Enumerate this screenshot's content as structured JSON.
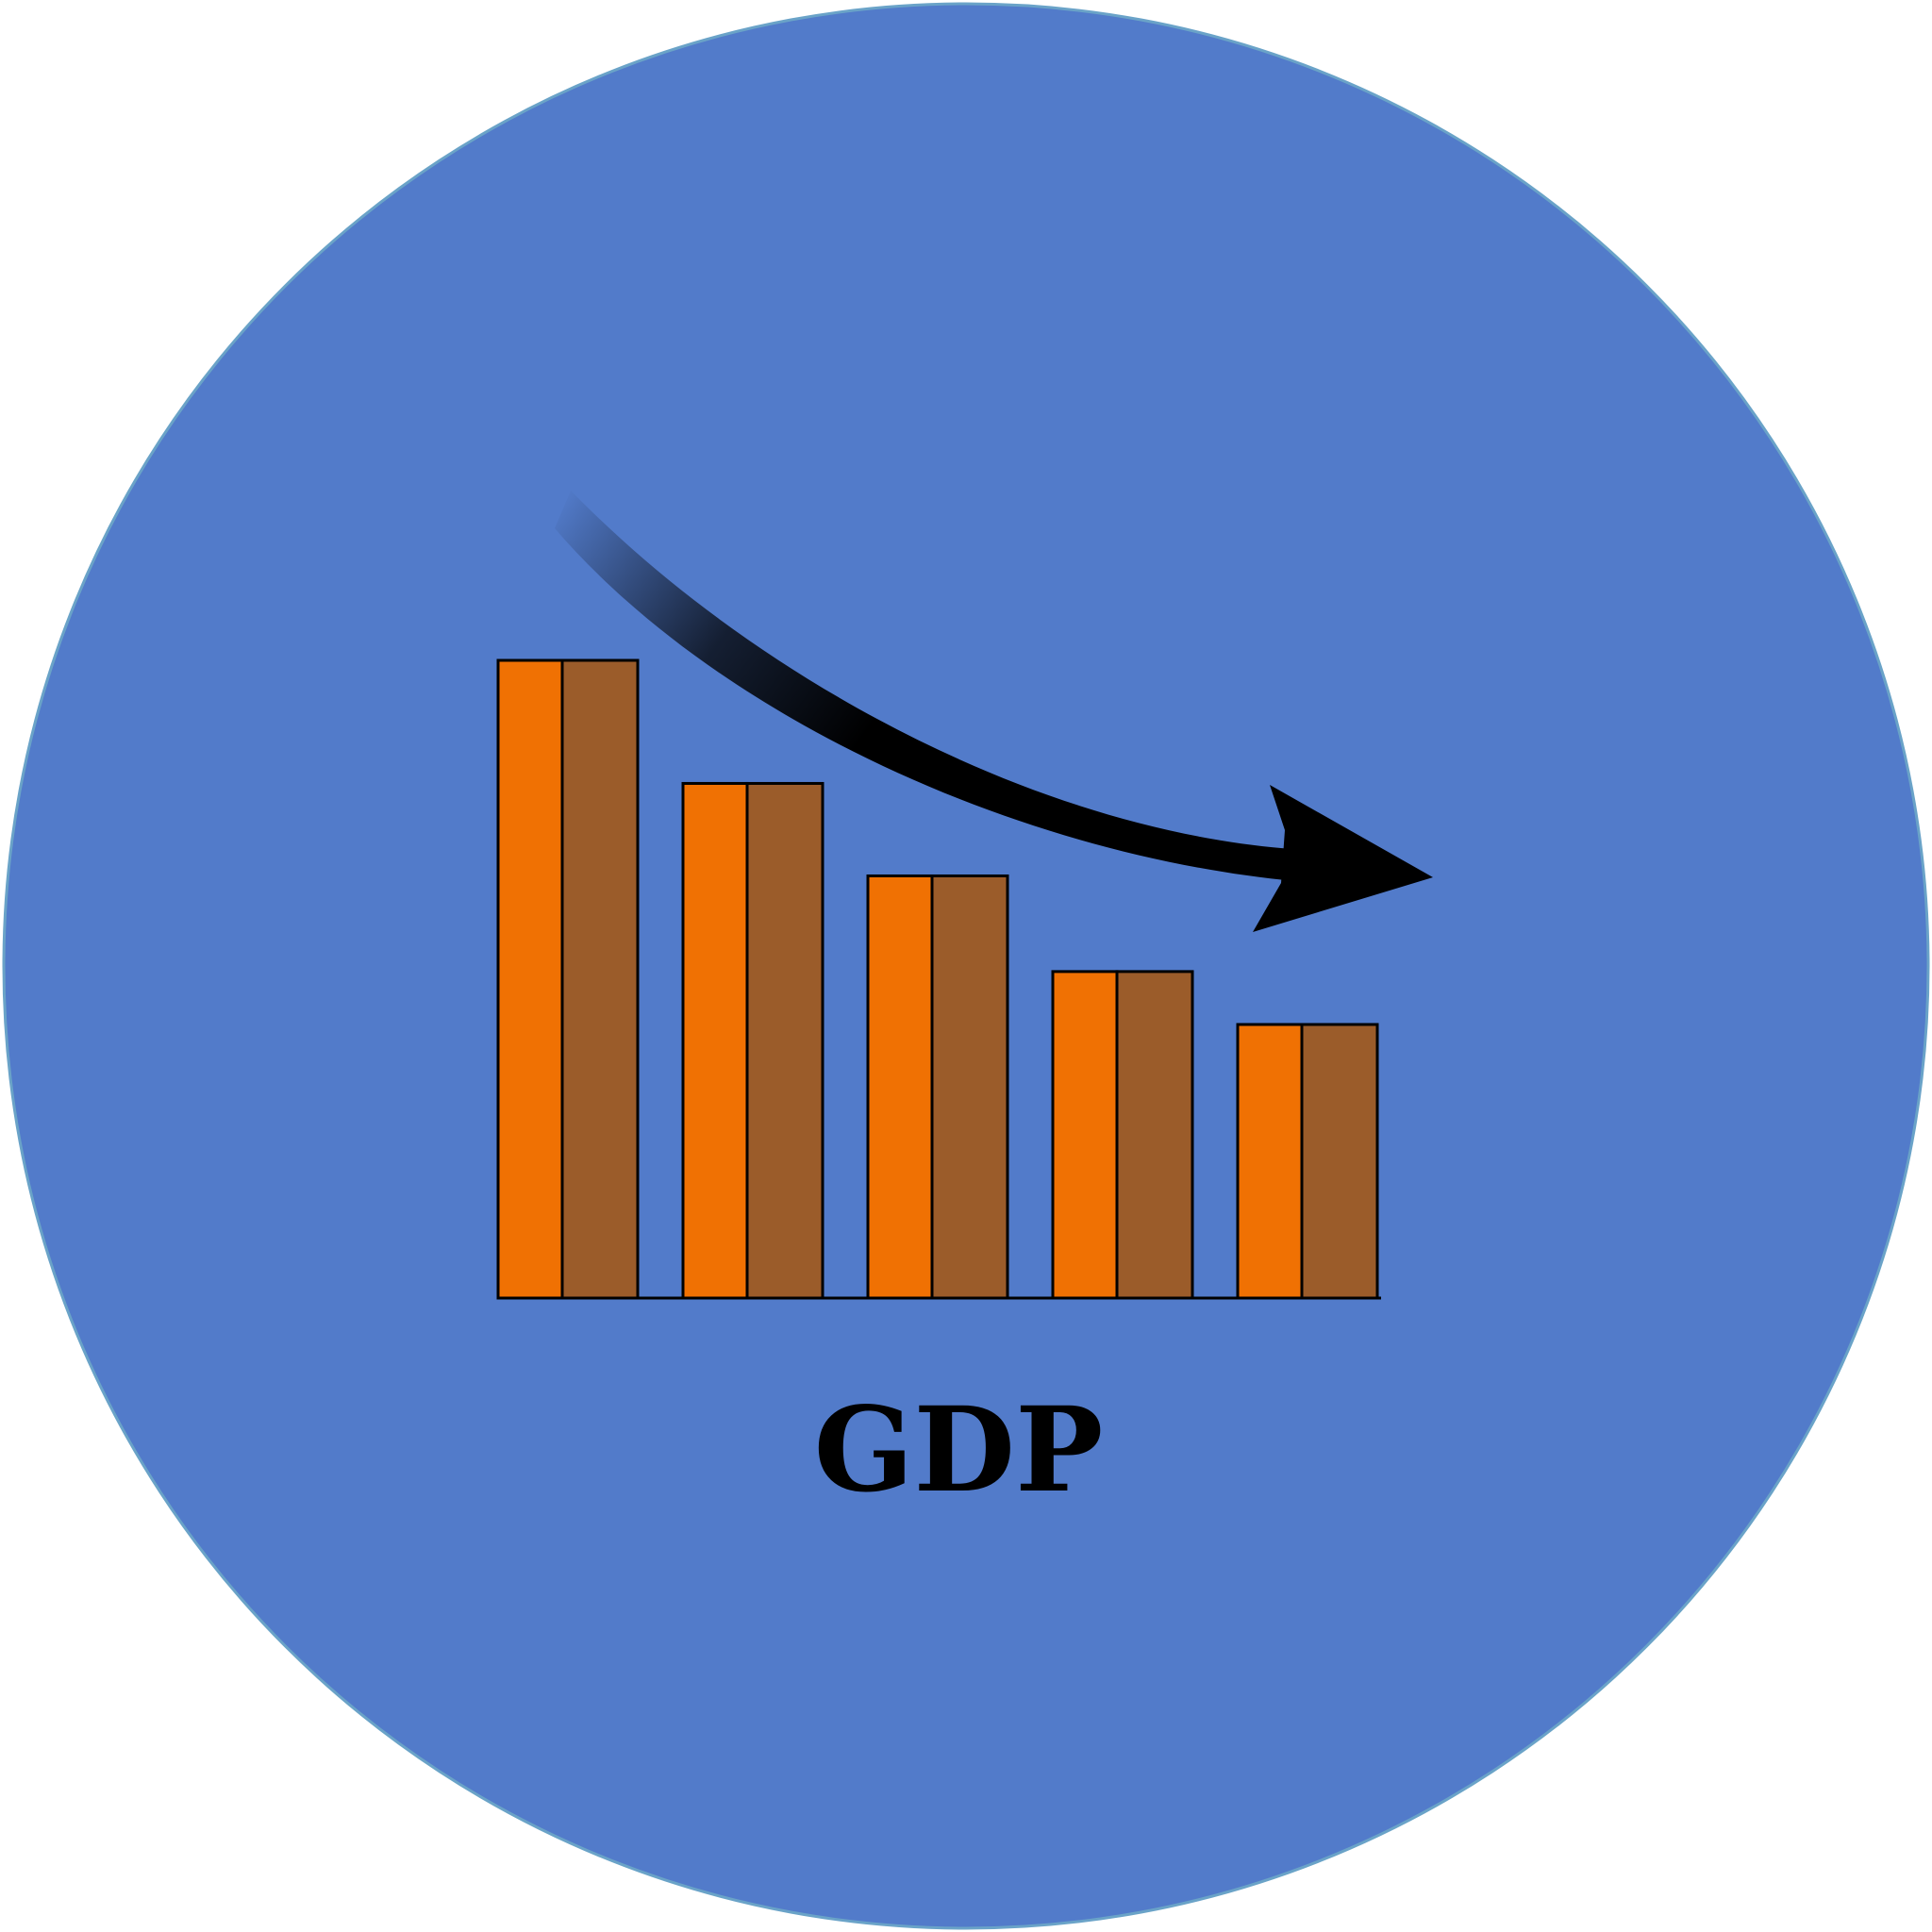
{
  "icon": {
    "label": "GDP",
    "theme": "declining-gdp-bar-chart",
    "background_color": "#527bca",
    "outline_color": "#000000",
    "trend_arrow_color": "#000000",
    "trend_direction": "down"
  },
  "chart_data": {
    "type": "bar",
    "title": "",
    "xlabel": "",
    "ylabel": "",
    "categories": [
      "",
      "",
      "",
      "",
      ""
    ],
    "values": [
      100,
      80.7,
      66.2,
      51.2,
      42.9
    ],
    "ylim": [
      0,
      100
    ],
    "grid": false,
    "legend": "none",
    "colors": {
      "front_face": "#f07103",
      "side_face": "#9b5c2a"
    }
  }
}
